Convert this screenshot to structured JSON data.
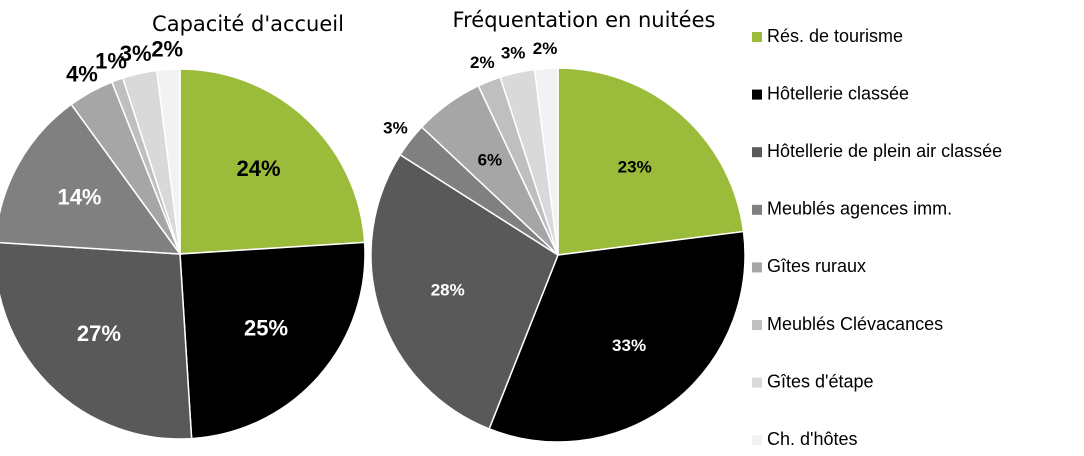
{
  "chart_data": [
    {
      "type": "pie",
      "title": "Capacité d'accueil",
      "categories": [
        "Rés. de tourisme",
        "Hôtellerie classée",
        "Hôtellerie de plein air classée",
        "Meublés agences imm.",
        "Gîtes ruraux",
        "Meublés Clévacances",
        "Gîtes d'étape",
        "Ch. d'hôtes"
      ],
      "colors": [
        "#9bbb3b",
        "#000000",
        "#595959",
        "#808080",
        "#a6a6a6",
        "#bfbfbf",
        "#d9d9d9",
        "#f2f2f2"
      ],
      "values": [
        24,
        25,
        27,
        14,
        4,
        1,
        3,
        2
      ],
      "value_labels": [
        "24%",
        "25%",
        "27%",
        "14%",
        "4%",
        "1%",
        "3%",
        "2%"
      ]
    },
    {
      "type": "pie",
      "title": "Fréquentation en nuitées",
      "values": [
        23,
        33,
        28,
        3,
        6,
        2,
        3,
        2
      ],
      "value_labels": [
        "23%",
        "33%",
        "28%",
        "3%",
        "6%",
        "2%",
        "3%",
        "2%"
      ]
    }
  ]
}
